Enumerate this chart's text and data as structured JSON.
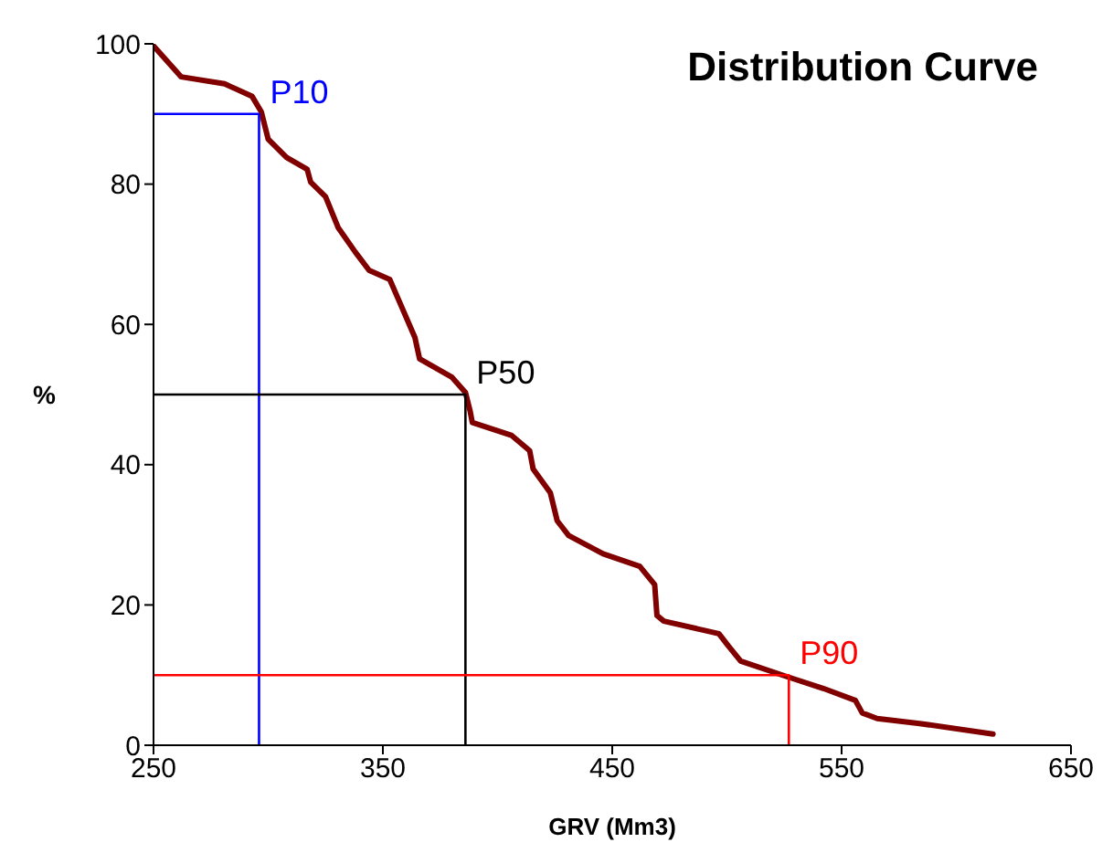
{
  "chart_data": {
    "type": "line",
    "title": "Distribution Curve",
    "xlabel": "GRV (Mm3)",
    "ylabel": "%",
    "xlim": [
      250,
      650
    ],
    "xticks": [
      250,
      350,
      450,
      550,
      650
    ],
    "ylim": [
      0,
      100
    ],
    "yticks": [
      0,
      20,
      40,
      60,
      80,
      100
    ],
    "grid": false,
    "legend": false,
    "marker": "none",
    "line_style": "solid",
    "series": [
      {
        "color": "#800000",
        "x": [
          250,
          262,
          281,
          293,
          297,
          300,
          308,
          317,
          318.5,
          325,
          330.5,
          338,
          344,
          353,
          357,
          364,
          366,
          380,
          386,
          388,
          389,
          406,
          414,
          415.5,
          423,
          426,
          431,
          446,
          462,
          468.5,
          469.5,
          472.5,
          496.5,
          500.5,
          506,
          526,
          542,
          556,
          559,
          565.5,
          584,
          616
        ],
        "values": [
          99.7,
          95.3,
          94.3,
          92.5,
          90.3,
          86.4,
          83.8,
          82.1,
          80.3,
          78.2,
          73.8,
          70.3,
          67.7,
          66.4,
          63.4,
          58.1,
          55.1,
          52.5,
          50.3,
          47.7,
          46,
          44.2,
          42,
          39.4,
          36,
          32,
          29.9,
          27.3,
          25.5,
          22.9,
          18.5,
          17.7,
          15.9,
          14.2,
          12,
          9.8,
          8.1,
          6.4,
          4.6,
          3.8,
          3.1,
          1.6
        ]
      },
      {
        "name": "P10",
        "color": "#0000ff",
        "x": [
          250,
          296,
          296
        ],
        "values": [
          90,
          90,
          0
        ]
      },
      {
        "name": "P50",
        "color": "#000000",
        "x": [
          250,
          386,
          386
        ],
        "values": [
          50,
          50,
          0
        ]
      },
      {
        "name": "P90",
        "color": "#ff0000",
        "x": [
          250,
          527,
          527
        ],
        "values": [
          10,
          10,
          0
        ]
      }
    ]
  }
}
